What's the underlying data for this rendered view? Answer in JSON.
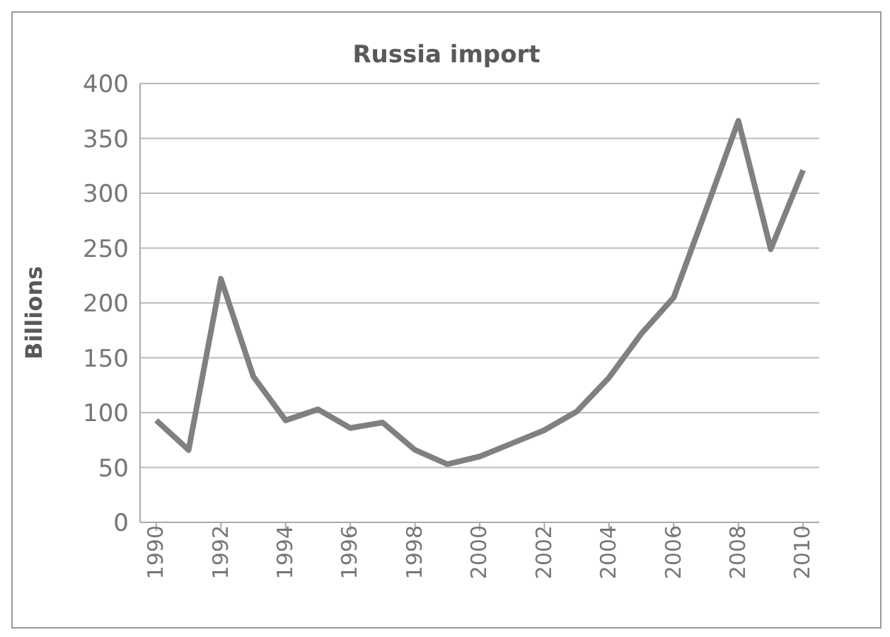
{
  "chart_data": {
    "type": "line",
    "title": "Russia import",
    "ylabel": "Billions",
    "x": [
      1990,
      1991,
      1992,
      1993,
      1994,
      1995,
      1996,
      1997,
      1998,
      1999,
      2000,
      2001,
      2002,
      2003,
      2004,
      2005,
      2006,
      2007,
      2008,
      2009,
      2010
    ],
    "series": [
      {
        "color": "#808080",
        "values": [
          93,
          66,
          222,
          133,
          93,
          103,
          86,
          91,
          66,
          53,
          60,
          72,
          84,
          101,
          132,
          172,
          205,
          285,
          366,
          249,
          321
        ]
      }
    ],
    "xlim": [
      1989.5,
      2010.5
    ],
    "xticks": [
      1990,
      1992,
      1994,
      1996,
      1998,
      2000,
      2002,
      2004,
      2006,
      2008,
      2010
    ],
    "ylim": [
      0,
      400
    ],
    "yticks": [
      0,
      50,
      100,
      150,
      200,
      250,
      300,
      350,
      400
    ],
    "grid": "y",
    "marker": "none",
    "line_style": "solid"
  }
}
